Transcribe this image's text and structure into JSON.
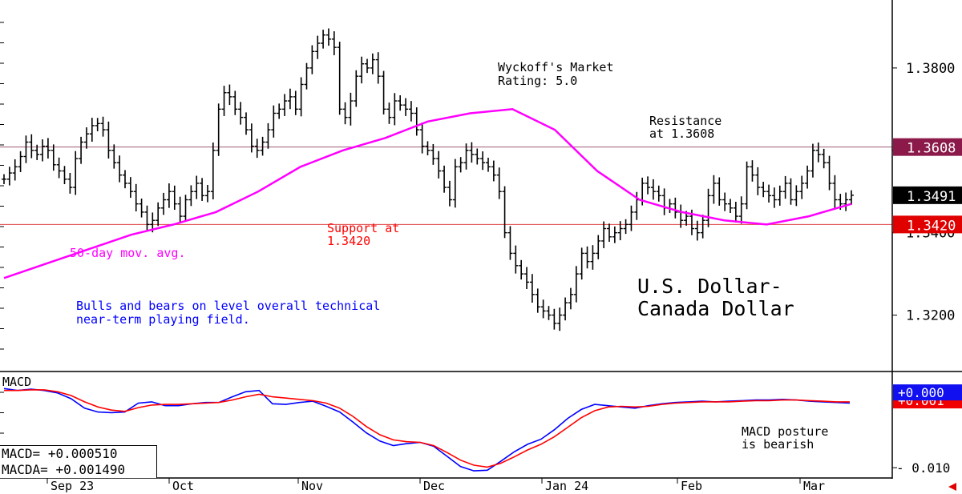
{
  "chart_data": [
    {
      "type": "ohlc",
      "title": "U.S. Dollar-\nCanada Dollar",
      "rating": "Wyckoff's Market\nRating: 5.0",
      "annotations": {
        "moving_average": "50-day mov. avg.",
        "support": "Support at\n1.3420",
        "resistance": "Resistance\nat 1.3608",
        "commentary": "Bulls and bears on level overall technical\nnear-term playing field."
      },
      "y_ticks": [
        "1.3800",
        "1.3600",
        "1.3400",
        "1.3200"
      ],
      "ylim": [
        1.3065,
        1.3965
      ],
      "x_labels": [
        "Sep 23",
        "Oct",
        "Nov",
        "Dec",
        "Jan 24",
        "Feb",
        "Mar"
      ],
      "levels": [
        {
          "value": 1.3608,
          "label": "1.3608",
          "line_color": "#a05a78",
          "tag_color": "#8b1a4a"
        },
        {
          "value": 1.3491,
          "label": "1.3491",
          "line_color": "#000000",
          "tag_color": "#000000"
        },
        {
          "value": 1.342,
          "label": "1.3420",
          "line_color": "#e04040",
          "tag_color": "#e00000"
        }
      ],
      "price_closes": [
        1.353,
        1.3545,
        1.356,
        1.3585,
        1.362,
        1.36,
        1.359,
        1.361,
        1.36,
        1.3565,
        1.355,
        1.353,
        1.351,
        1.358,
        1.362,
        1.364,
        1.366,
        1.3665,
        1.365,
        1.36,
        1.357,
        1.354,
        1.352,
        1.35,
        1.347,
        1.345,
        1.342,
        1.343,
        1.346,
        1.348,
        1.35,
        1.347,
        1.344,
        1.348,
        1.35,
        1.352,
        1.349,
        1.35,
        1.36,
        1.37,
        1.374,
        1.373,
        1.37,
        1.368,
        1.365,
        1.361,
        1.36,
        1.362,
        1.365,
        1.369,
        1.37,
        1.372,
        1.373,
        1.37,
        1.376,
        1.38,
        1.384,
        1.386,
        1.388,
        1.387,
        1.385,
        1.37,
        1.368,
        1.372,
        1.378,
        1.381,
        1.38,
        1.382,
        1.378,
        1.37,
        1.368,
        1.372,
        1.371,
        1.37,
        1.369,
        1.365,
        1.361,
        1.36,
        1.358,
        1.355,
        1.351,
        1.348,
        1.356,
        1.357,
        1.36,
        1.359,
        1.358,
        1.357,
        1.356,
        1.354,
        1.35,
        1.34,
        1.335,
        1.332,
        1.33,
        1.328,
        1.325,
        1.322,
        1.321,
        1.32,
        1.318,
        1.32,
        1.323,
        1.325,
        1.33,
        1.335,
        1.333,
        1.335,
        1.338,
        1.341,
        1.339,
        1.34,
        1.341,
        1.342,
        1.345,
        1.348,
        1.352,
        1.351,
        1.35,
        1.349,
        1.346,
        1.347,
        1.345,
        1.343,
        1.344,
        1.341,
        1.34,
        1.343,
        1.349,
        1.352,
        1.348,
        1.347,
        1.346,
        1.344,
        1.347,
        1.356,
        1.354,
        1.351,
        1.35,
        1.349,
        1.348,
        1.35,
        1.352,
        1.348,
        1.35,
        1.352,
        1.355,
        1.36,
        1.359,
        1.357,
        1.352,
        1.348,
        1.347,
        1.348,
        1.3491
      ],
      "moving_average_values": [
        1.329,
        1.3325,
        1.336,
        1.3395,
        1.342,
        1.345,
        1.35,
        1.356,
        1.36,
        1.363,
        1.367,
        1.369,
        1.37,
        1.365,
        1.355,
        1.348,
        1.345,
        1.343,
        1.342,
        1.344,
        1.347
      ],
      "colors": {
        "bars": "#000000",
        "moving_average": "#ff00ff",
        "annotation_red": "#ff0000",
        "annotation_blue": "#0000ff"
      }
    },
    {
      "type": "line",
      "title": "MACD",
      "y_ticks": [
        "- 0.010"
      ],
      "ylim": [
        -0.0115,
        0.0052
      ],
      "readouts": [
        {
          "label": "MACD=",
          "value": "+0.000510"
        },
        {
          "label": "MACDA=",
          "value": "+0.001490"
        }
      ],
      "current_tags": [
        {
          "label": "+0.000",
          "bg": "#1010f0"
        },
        {
          "label": "+0.001",
          "bg": "#f00000"
        }
      ],
      "annotation": "MACD posture\nis bearish",
      "series": [
        {
          "color": "#0000ff",
          "values": [
            0.0025,
            0.0022,
            0.0024,
            0.0022,
            0.0018,
            0.0009,
            -0.0006,
            -0.0012,
            -0.0013,
            -0.0012,
            0.0002,
            0.0004,
            -0.0002,
            -0.0002,
            0.0001,
            0.0003,
            0.0003,
            0.0012,
            0.002,
            0.0022,
            0.0001,
            0.0,
            0.0003,
            0.0005,
            -0.0003,
            -0.0012,
            -0.0028,
            -0.0045,
            -0.0058,
            -0.0065,
            -0.0062,
            -0.006,
            -0.0066,
            -0.0082,
            -0.0098,
            -0.0105,
            -0.0104,
            -0.009,
            -0.0075,
            -0.0063,
            -0.0055,
            -0.004,
            -0.0022,
            -0.0008,
            0.0,
            -0.0002,
            -0.0004,
            -0.0006,
            -0.0002,
            0.0001,
            0.0003,
            0.0004,
            0.0005,
            0.0004,
            0.0005,
            0.0006,
            0.0007,
            0.0007,
            0.0008,
            0.0007,
            0.0005,
            0.0004,
            0.0003,
            0.0002
          ]
        },
        {
          "color": "#ff0000",
          "values": [
            0.0022,
            0.0022,
            0.0023,
            0.0023,
            0.002,
            0.0014,
            0.0004,
            -0.0004,
            -0.0009,
            -0.0011,
            -0.0005,
            -0.0001,
            0.0,
            0.0,
            0.0001,
            0.0002,
            0.0003,
            0.0007,
            0.0012,
            0.0016,
            0.0012,
            0.001,
            0.0008,
            0.0006,
            0.0002,
            -0.0006,
            -0.0019,
            -0.0035,
            -0.0048,
            -0.0056,
            -0.0059,
            -0.006,
            -0.0065,
            -0.0076,
            -0.0088,
            -0.0096,
            -0.0099,
            -0.0093,
            -0.0083,
            -0.0072,
            -0.0063,
            -0.0051,
            -0.0036,
            -0.0021,
            -0.001,
            -0.0004,
            -0.0003,
            -0.0004,
            -0.0003,
            0.0,
            0.0002,
            0.0003,
            0.0004,
            0.0004,
            0.0004,
            0.0005,
            0.0006,
            0.0006,
            0.0007,
            0.0007,
            0.0006,
            0.0005,
            0.0004,
            0.0004
          ]
        }
      ]
    }
  ]
}
